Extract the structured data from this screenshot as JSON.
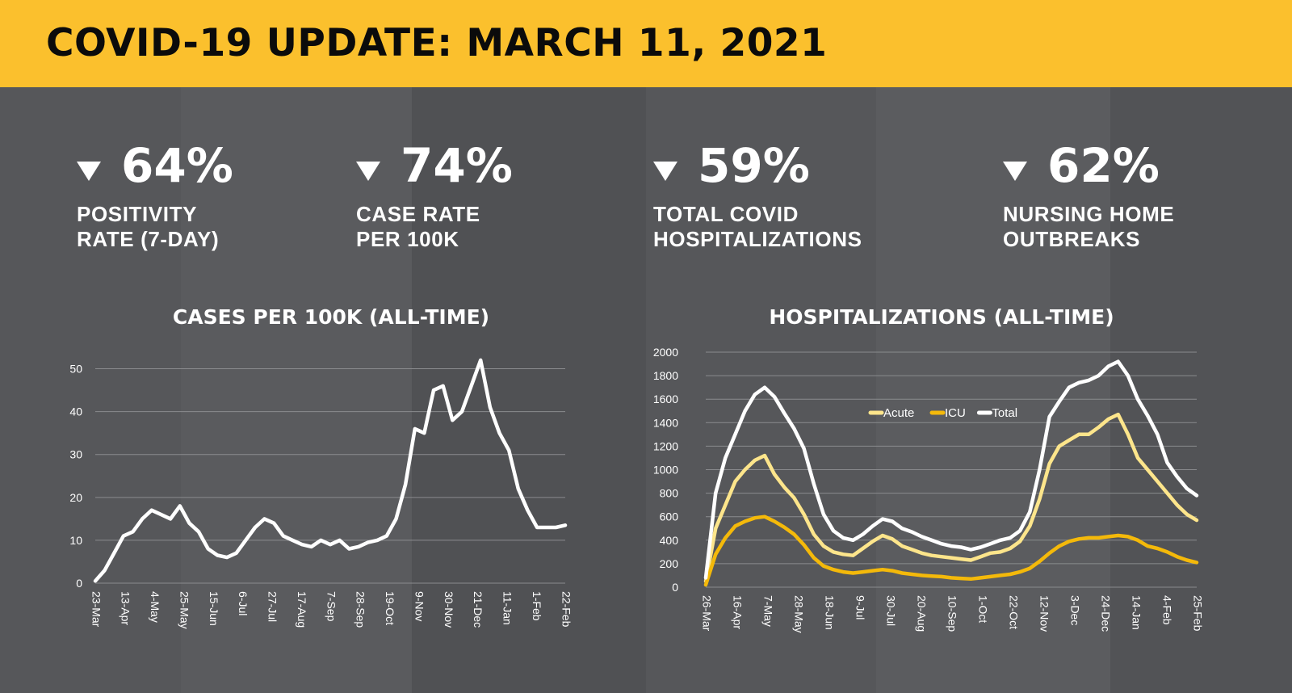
{
  "header": {
    "title": "COVID-19 UPDATE: MARCH 11, 2021"
  },
  "colors": {
    "header_bg": "#fbc02d",
    "background": "#56575a",
    "acute": "#fde58b",
    "icu": "#f4b90a",
    "total": "#ffffff"
  },
  "stats": [
    {
      "direction": "down",
      "value": "64%",
      "label_lines": [
        "POSITIVITY",
        "RATE (7-DAY)"
      ]
    },
    {
      "direction": "down",
      "value": "74%",
      "label_lines": [
        "CASE RATE",
        "PER 100K"
      ]
    },
    {
      "direction": "down",
      "value": "59%",
      "label_lines": [
        "TOTAL COVID",
        "HOSPITALIZATIONS"
      ]
    },
    {
      "direction": "down",
      "value": "62%",
      "label_lines": [
        "NURSING HOME",
        "OUTBREAKS"
      ]
    }
  ],
  "chart_data": [
    {
      "type": "line",
      "title": "CASES PER 100K (ALL-TIME)",
      "xlabel": "",
      "ylabel": "",
      "ylim": [
        0,
        55
      ],
      "yticks": [
        0,
        10,
        20,
        30,
        40,
        50
      ],
      "grid": true,
      "xticks": [
        "23-Mar",
        "13-Apr",
        "4-May",
        "25-May",
        "15-Jun",
        "6-Jul",
        "27-Jul",
        "17-Aug",
        "7-Sep",
        "28-Sep",
        "19-Oct",
        "9-Nov",
        "30-Nov",
        "21-Dec",
        "11-Jan",
        "1-Feb",
        "22-Feb"
      ],
      "x": [
        "23-Mar",
        "30-Mar",
        "6-Apr",
        "13-Apr",
        "20-Apr",
        "27-Apr",
        "4-May",
        "11-May",
        "18-May",
        "25-May",
        "1-Jun",
        "8-Jun",
        "15-Jun",
        "22-Jun",
        "29-Jun",
        "6-Jul",
        "13-Jul",
        "20-Jul",
        "27-Jul",
        "3-Aug",
        "10-Aug",
        "17-Aug",
        "24-Aug",
        "31-Aug",
        "7-Sep",
        "14-Sep",
        "21-Sep",
        "28-Sep",
        "5-Oct",
        "12-Oct",
        "19-Oct",
        "26-Oct",
        "2-Nov",
        "9-Nov",
        "16-Nov",
        "23-Nov",
        "30-Nov",
        "7-Dec",
        "14-Dec",
        "21-Dec",
        "28-Dec",
        "4-Jan",
        "11-Jan",
        "18-Jan",
        "25-Jan",
        "1-Feb",
        "8-Feb",
        "15-Feb",
        "22-Feb",
        "1-Mar",
        "8-Mar"
      ],
      "series": [
        {
          "color": "#ffffff",
          "values": [
            0.5,
            3,
            7,
            11,
            12,
            15,
            17,
            16,
            15,
            18,
            14,
            12,
            8,
            6.5,
            6,
            7,
            10,
            13,
            15,
            14,
            11,
            10,
            9,
            8.5,
            10,
            9,
            10,
            8,
            8.5,
            9.5,
            10,
            11,
            15,
            23,
            36,
            35,
            45,
            46,
            38,
            40,
            46,
            52,
            41,
            35,
            31,
            22,
            17,
            13,
            13,
            13,
            13.5
          ]
        }
      ]
    },
    {
      "type": "line",
      "title": "HOSPITALIZATIONS (ALL-TIME)",
      "xlabel": "",
      "ylabel": "",
      "ylim": [
        0,
        2000
      ],
      "yticks": [
        0,
        200,
        400,
        600,
        800,
        1000,
        1200,
        1400,
        1600,
        1800,
        2000
      ],
      "grid": true,
      "legend_position": "top-center",
      "xticks": [
        "26-Mar",
        "16-Apr",
        "7-May",
        "28-May",
        "18-Jun",
        "9-Jul",
        "30-Jul",
        "20-Aug",
        "10-Sep",
        "1-Oct",
        "22-Oct",
        "12-Nov",
        "3-Dec",
        "24-Dec",
        "14-Jan",
        "4-Feb",
        "25-Feb"
      ],
      "x": [
        "26-Mar",
        "2-Apr",
        "9-Apr",
        "16-Apr",
        "23-Apr",
        "30-Apr",
        "7-May",
        "14-May",
        "21-May",
        "28-May",
        "4-Jun",
        "11-Jun",
        "18-Jun",
        "25-Jun",
        "2-Jul",
        "9-Jul",
        "16-Jul",
        "23-Jul",
        "30-Jul",
        "6-Aug",
        "13-Aug",
        "20-Aug",
        "27-Aug",
        "3-Sep",
        "10-Sep",
        "17-Sep",
        "24-Sep",
        "1-Oct",
        "8-Oct",
        "15-Oct",
        "22-Oct",
        "29-Oct",
        "5-Nov",
        "12-Nov",
        "19-Nov",
        "26-Nov",
        "3-Dec",
        "10-Dec",
        "17-Dec",
        "24-Dec",
        "31-Dec",
        "7-Jan",
        "14-Jan",
        "21-Jan",
        "28-Jan",
        "4-Feb",
        "11-Feb",
        "18-Feb",
        "25-Feb",
        "4-Mar",
        "11-Mar"
      ],
      "series": [
        {
          "name": "Acute",
          "color": "#fde58b",
          "values": [
            50,
            500,
            700,
            900,
            1000,
            1080,
            1120,
            960,
            850,
            760,
            620,
            450,
            350,
            300,
            280,
            270,
            330,
            390,
            440,
            410,
            350,
            320,
            290,
            270,
            260,
            250,
            240,
            230,
            260,
            290,
            300,
            330,
            390,
            520,
            750,
            1050,
            1200,
            1250,
            1300,
            1300,
            1360,
            1430,
            1470,
            1300,
            1100,
            1000,
            900,
            800,
            700,
            620,
            570
          ]
        },
        {
          "name": "ICU",
          "color": "#f4b90a",
          "values": [
            20,
            280,
            420,
            520,
            560,
            590,
            600,
            560,
            510,
            450,
            360,
            250,
            180,
            150,
            130,
            120,
            130,
            140,
            150,
            140,
            120,
            110,
            100,
            95,
            90,
            80,
            75,
            70,
            80,
            90,
            100,
            110,
            130,
            160,
            220,
            290,
            350,
            390,
            410,
            420,
            420,
            430,
            440,
            430,
            400,
            350,
            330,
            300,
            260,
            230,
            210
          ]
        },
        {
          "name": "Total",
          "color": "#ffffff",
          "values": [
            80,
            800,
            1100,
            1300,
            1500,
            1640,
            1700,
            1620,
            1480,
            1350,
            1180,
            880,
            620,
            480,
            420,
            400,
            450,
            520,
            580,
            560,
            500,
            470,
            430,
            400,
            370,
            350,
            340,
            320,
            340,
            370,
            400,
            420,
            480,
            640,
            1000,
            1450,
            1580,
            1700,
            1740,
            1760,
            1800,
            1880,
            1920,
            1800,
            1600,
            1460,
            1300,
            1060,
            940,
            840,
            780
          ]
        }
      ]
    }
  ]
}
